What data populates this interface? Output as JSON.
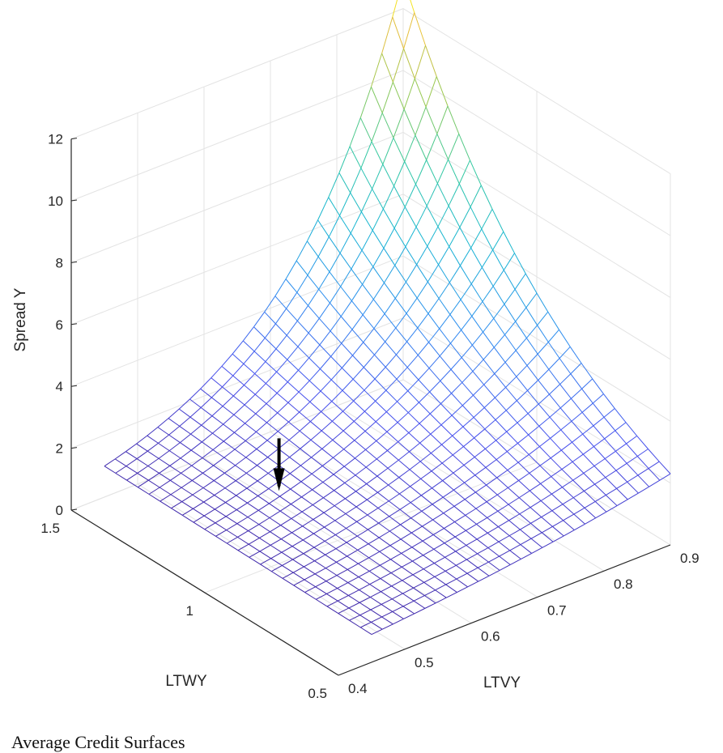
{
  "chart_data": {
    "type": "surface",
    "zlabel": "Spread Y",
    "xlabel": "LTVY",
    "ylabel": "LTWY",
    "xlim": [
      0.4,
      0.9
    ],
    "ylim": [
      0.5,
      1.5
    ],
    "zlim": [
      0,
      12
    ],
    "x_ticks": [
      "0.4",
      "0.5",
      "0.6",
      "0.7",
      "0.8",
      "0.9"
    ],
    "y_ticks": [
      "0.5",
      "1",
      "1.5"
    ],
    "z_ticks": [
      "0",
      "2",
      "4",
      "6",
      "8",
      "10",
      "12"
    ],
    "grid": true,
    "colormap": "parula",
    "surface_domain": {
      "x": [
        0.45,
        0.9
      ],
      "y": [
        0.5,
        1.5
      ]
    },
    "mesh": {
      "nx": 29,
      "ny": 25
    },
    "surface_corners": [
      {
        "x": 0.45,
        "y": 0.5,
        "z": 0.9
      },
      {
        "x": 0.45,
        "y": 1.5,
        "z": 1.0
      },
      {
        "x": 0.9,
        "y": 0.5,
        "z": 2.3
      },
      {
        "x": 0.9,
        "y": 1.5,
        "z": 13.0
      }
    ],
    "arrow": {
      "x": 0.56,
      "y": 1.12,
      "z_from": 3.0,
      "z_to": 1.3,
      "color": "#000000"
    }
  },
  "caption": "Average Credit Surfaces"
}
